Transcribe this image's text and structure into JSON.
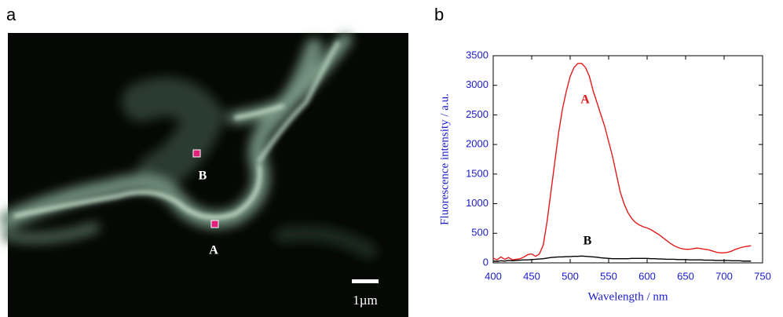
{
  "panel_a": {
    "label": "a",
    "point_b": "B",
    "point_a": "A",
    "scale_bar": "1µm"
  },
  "panel_b_label": "b",
  "chart_data": {
    "type": "line",
    "x_label": "Wavelength / nm",
    "y_label": "Fluorescence intensity / a.u.",
    "x": [
      400,
      405,
      410,
      415,
      420,
      425,
      430,
      435,
      440,
      445,
      450,
      455,
      460,
      465,
      470,
      475,
      480,
      485,
      490,
      495,
      500,
      505,
      510,
      515,
      520,
      525,
      530,
      535,
      540,
      545,
      550,
      555,
      560,
      565,
      570,
      575,
      580,
      585,
      590,
      595,
      600,
      605,
      610,
      615,
      620,
      625,
      630,
      635,
      640,
      645,
      650,
      655,
      660,
      665,
      670,
      675,
      680,
      685,
      690,
      695,
      700,
      705,
      710,
      715,
      720,
      725,
      730,
      735
    ],
    "series": [
      {
        "name": "A",
        "color": "#e31a1c",
        "values": [
          80,
          50,
          100,
          60,
          90,
          50,
          60,
          70,
          100,
          140,
          150,
          110,
          150,
          300,
          700,
          1200,
          1700,
          2200,
          2600,
          2900,
          3150,
          3300,
          3370,
          3370,
          3300,
          3150,
          2900,
          2700,
          2500,
          2300,
          2050,
          1800,
          1500,
          1200,
          1000,
          850,
          750,
          680,
          640,
          610,
          590,
          560,
          520,
          480,
          430,
          380,
          330,
          290,
          260,
          240,
          230,
          230,
          240,
          250,
          240,
          230,
          220,
          200,
          180,
          170,
          170,
          180,
          200,
          230,
          250,
          270,
          280,
          290
        ]
      },
      {
        "name": "B",
        "color": "#000000",
        "values": [
          30,
          25,
          35,
          30,
          40,
          35,
          40,
          45,
          50,
          50,
          55,
          60,
          65,
          70,
          80,
          90,
          95,
          100,
          100,
          105,
          105,
          110,
          110,
          115,
          110,
          105,
          100,
          95,
          85,
          80,
          75,
          70,
          70,
          70,
          70,
          70,
          75,
          75,
          75,
          75,
          75,
          70,
          70,
          65,
          65,
          60,
          60,
          60,
          55,
          55,
          55,
          50,
          50,
          50,
          50,
          45,
          45,
          45,
          40,
          40,
          40,
          40,
          35,
          35,
          35,
          30,
          30,
          30
        ]
      }
    ],
    "xlim": [
      400,
      750
    ],
    "ylim": [
      0,
      3500
    ],
    "xticks": [
      400,
      450,
      500,
      550,
      600,
      650,
      700,
      750
    ],
    "yticks": [
      0,
      500,
      1000,
      1500,
      2000,
      2500,
      3000,
      3500
    ],
    "axis_color": "#1a1acc"
  }
}
